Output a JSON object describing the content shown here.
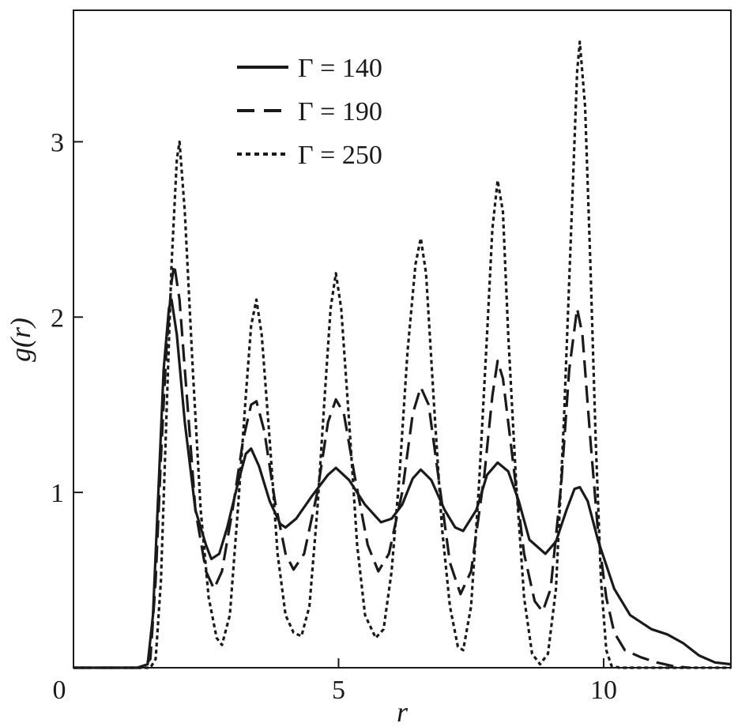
{
  "chart_data": {
    "type": "line",
    "xlabel": "r",
    "ylabel": "g(r)",
    "xlim": [
      0,
      12.4
    ],
    "ylim": [
      0,
      3.75
    ],
    "x_ticks": [
      0,
      5,
      10
    ],
    "y_ticks": [
      1,
      2,
      3
    ],
    "grid": false,
    "legend_position": "top-center",
    "series": [
      {
        "name": "Γ = 140",
        "style": "solid",
        "points": [
          [
            0,
            0
          ],
          [
            1.2,
            0
          ],
          [
            1.4,
            0.02
          ],
          [
            1.5,
            0.3
          ],
          [
            1.6,
            1.0
          ],
          [
            1.7,
            1.7
          ],
          [
            1.8,
            2.05
          ],
          [
            1.85,
            2.1
          ],
          [
            1.95,
            1.9
          ],
          [
            2.1,
            1.4
          ],
          [
            2.3,
            0.9
          ],
          [
            2.5,
            0.7
          ],
          [
            2.6,
            0.62
          ],
          [
            2.75,
            0.65
          ],
          [
            2.9,
            0.8
          ],
          [
            3.1,
            1.05
          ],
          [
            3.25,
            1.22
          ],
          [
            3.35,
            1.25
          ],
          [
            3.5,
            1.15
          ],
          [
            3.7,
            0.95
          ],
          [
            3.9,
            0.82
          ],
          [
            4.0,
            0.8
          ],
          [
            4.2,
            0.85
          ],
          [
            4.5,
            0.98
          ],
          [
            4.8,
            1.1
          ],
          [
            4.95,
            1.14
          ],
          [
            5.2,
            1.07
          ],
          [
            5.5,
            0.93
          ],
          [
            5.8,
            0.83
          ],
          [
            6.0,
            0.85
          ],
          [
            6.2,
            0.93
          ],
          [
            6.4,
            1.08
          ],
          [
            6.55,
            1.13
          ],
          [
            6.75,
            1.07
          ],
          [
            7.0,
            0.9
          ],
          [
            7.2,
            0.8
          ],
          [
            7.35,
            0.78
          ],
          [
            7.6,
            0.9
          ],
          [
            7.8,
            1.1
          ],
          [
            8.0,
            1.17
          ],
          [
            8.2,
            1.12
          ],
          [
            8.4,
            0.95
          ],
          [
            8.6,
            0.73
          ],
          [
            8.9,
            0.65
          ],
          [
            9.1,
            0.72
          ],
          [
            9.3,
            0.9
          ],
          [
            9.45,
            1.02
          ],
          [
            9.55,
            1.03
          ],
          [
            9.7,
            0.95
          ],
          [
            9.9,
            0.72
          ],
          [
            10.2,
            0.45
          ],
          [
            10.5,
            0.3
          ],
          [
            10.9,
            0.22
          ],
          [
            11.2,
            0.19
          ],
          [
            11.5,
            0.14
          ],
          [
            11.8,
            0.07
          ],
          [
            12.1,
            0.03
          ],
          [
            12.4,
            0.02
          ]
        ]
      },
      {
        "name": "Γ = 190",
        "style": "dashed",
        "points": [
          [
            0,
            0
          ],
          [
            1.3,
            0
          ],
          [
            1.45,
            0.05
          ],
          [
            1.55,
            0.5
          ],
          [
            1.65,
            1.2
          ],
          [
            1.75,
            1.8
          ],
          [
            1.85,
            2.2
          ],
          [
            1.9,
            2.3
          ],
          [
            2.0,
            2.1
          ],
          [
            2.15,
            1.5
          ],
          [
            2.3,
            0.9
          ],
          [
            2.5,
            0.55
          ],
          [
            2.65,
            0.45
          ],
          [
            2.8,
            0.55
          ],
          [
            3.0,
            0.9
          ],
          [
            3.2,
            1.3
          ],
          [
            3.35,
            1.5
          ],
          [
            3.45,
            1.52
          ],
          [
            3.6,
            1.35
          ],
          [
            3.8,
            0.95
          ],
          [
            4.0,
            0.65
          ],
          [
            4.15,
            0.56
          ],
          [
            4.35,
            0.65
          ],
          [
            4.6,
            1.0
          ],
          [
            4.8,
            1.4
          ],
          [
            4.95,
            1.53
          ],
          [
            5.1,
            1.45
          ],
          [
            5.3,
            1.1
          ],
          [
            5.55,
            0.7
          ],
          [
            5.75,
            0.55
          ],
          [
            5.95,
            0.65
          ],
          [
            6.2,
            1.0
          ],
          [
            6.4,
            1.45
          ],
          [
            6.55,
            1.6
          ],
          [
            6.7,
            1.5
          ],
          [
            6.9,
            1.05
          ],
          [
            7.1,
            0.6
          ],
          [
            7.3,
            0.42
          ],
          [
            7.5,
            0.55
          ],
          [
            7.75,
            1.1
          ],
          [
            7.9,
            1.55
          ],
          [
            8.0,
            1.75
          ],
          [
            8.1,
            1.65
          ],
          [
            8.3,
            1.15
          ],
          [
            8.5,
            0.65
          ],
          [
            8.7,
            0.38
          ],
          [
            8.85,
            0.32
          ],
          [
            9.0,
            0.45
          ],
          [
            9.2,
            1.05
          ],
          [
            9.35,
            1.7
          ],
          [
            9.5,
            2.05
          ],
          [
            9.6,
            1.9
          ],
          [
            9.75,
            1.3
          ],
          [
            9.9,
            0.75
          ],
          [
            10.05,
            0.4
          ],
          [
            10.2,
            0.2
          ],
          [
            10.4,
            0.1
          ],
          [
            10.7,
            0.06
          ],
          [
            11.0,
            0.03
          ],
          [
            11.3,
            0.01
          ],
          [
            11.6,
            0
          ]
        ]
      },
      {
        "name": "Γ = 250",
        "style": "dotted",
        "points": [
          [
            0,
            0
          ],
          [
            1.45,
            0
          ],
          [
            1.55,
            0.05
          ],
          [
            1.65,
            0.5
          ],
          [
            1.75,
            1.4
          ],
          [
            1.85,
            2.3
          ],
          [
            1.95,
            2.9
          ],
          [
            2.0,
            3.0
          ],
          [
            2.1,
            2.6
          ],
          [
            2.25,
            1.7
          ],
          [
            2.4,
            0.9
          ],
          [
            2.55,
            0.4
          ],
          [
            2.7,
            0.17
          ],
          [
            2.8,
            0.13
          ],
          [
            2.95,
            0.3
          ],
          [
            3.1,
            0.9
          ],
          [
            3.25,
            1.55
          ],
          [
            3.35,
            1.95
          ],
          [
            3.45,
            2.1
          ],
          [
            3.55,
            1.9
          ],
          [
            3.7,
            1.3
          ],
          [
            3.85,
            0.65
          ],
          [
            4.0,
            0.3
          ],
          [
            4.15,
            0.2
          ],
          [
            4.3,
            0.18
          ],
          [
            4.45,
            0.35
          ],
          [
            4.6,
            0.9
          ],
          [
            4.75,
            1.6
          ],
          [
            4.85,
            2.05
          ],
          [
            4.95,
            2.25
          ],
          [
            5.05,
            2.05
          ],
          [
            5.2,
            1.4
          ],
          [
            5.35,
            0.7
          ],
          [
            5.5,
            0.3
          ],
          [
            5.7,
            0.17
          ],
          [
            5.85,
            0.22
          ],
          [
            6.0,
            0.55
          ],
          [
            6.15,
            1.1
          ],
          [
            6.3,
            1.8
          ],
          [
            6.45,
            2.3
          ],
          [
            6.55,
            2.45
          ],
          [
            6.65,
            2.25
          ],
          [
            6.8,
            1.5
          ],
          [
            6.95,
            0.8
          ],
          [
            7.1,
            0.35
          ],
          [
            7.25,
            0.12
          ],
          [
            7.35,
            0.1
          ],
          [
            7.5,
            0.35
          ],
          [
            7.65,
            1.05
          ],
          [
            7.8,
            1.9
          ],
          [
            7.9,
            2.5
          ],
          [
            8.0,
            2.78
          ],
          [
            8.1,
            2.6
          ],
          [
            8.2,
            1.9
          ],
          [
            8.35,
            1.05
          ],
          [
            8.5,
            0.4
          ],
          [
            8.65,
            0.08
          ],
          [
            8.8,
            0.02
          ],
          [
            8.95,
            0.08
          ],
          [
            9.1,
            0.45
          ],
          [
            9.25,
            1.4
          ],
          [
            9.4,
            2.6
          ],
          [
            9.5,
            3.4
          ],
          [
            9.55,
            3.57
          ],
          [
            9.65,
            3.2
          ],
          [
            9.75,
            2.3
          ],
          [
            9.85,
            1.3
          ],
          [
            9.95,
            0.5
          ],
          [
            10.05,
            0.1
          ],
          [
            10.15,
            0.01
          ],
          [
            10.3,
            0
          ],
          [
            12.4,
            0
          ]
        ]
      }
    ]
  },
  "legend": {
    "items": [
      {
        "label": "Γ = 140"
      },
      {
        "label": "Γ = 190"
      },
      {
        "label": "Γ = 250"
      }
    ]
  }
}
